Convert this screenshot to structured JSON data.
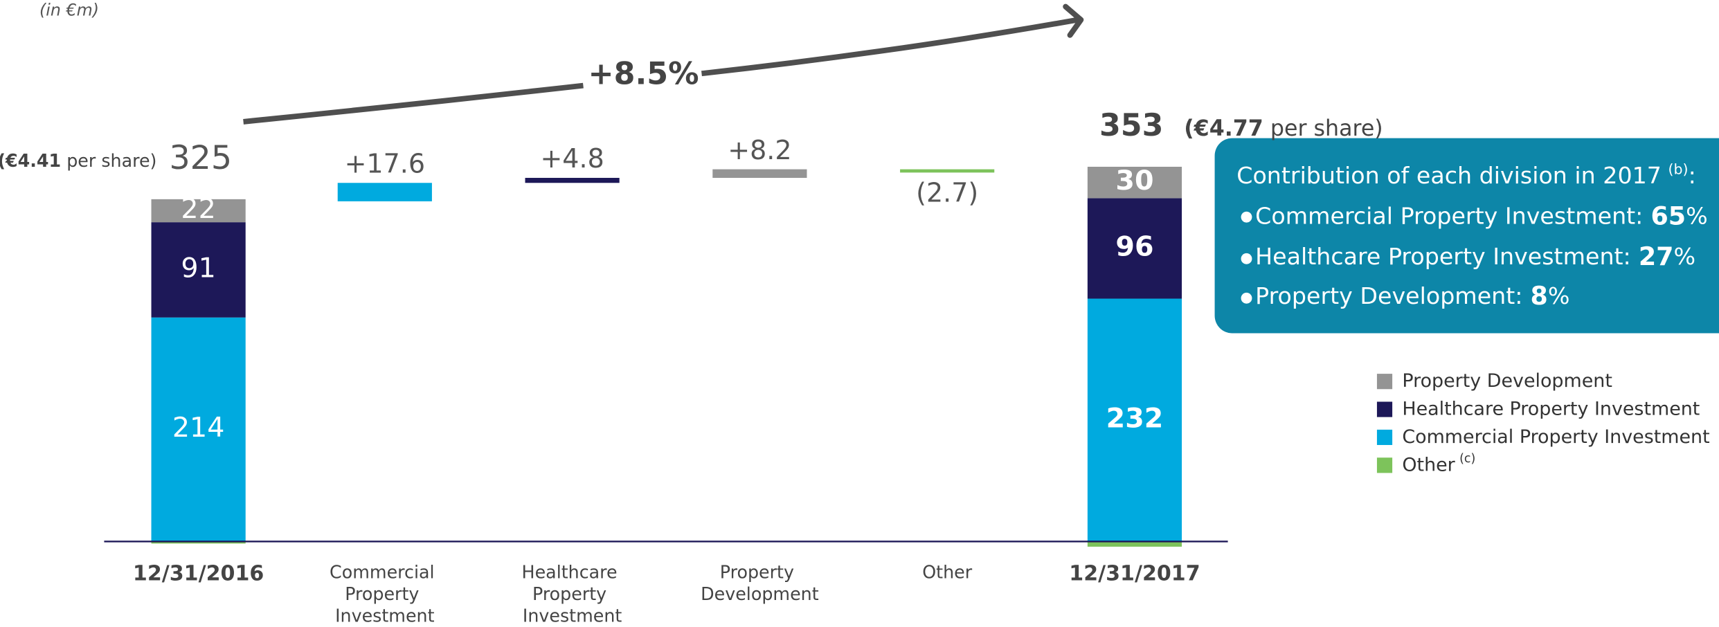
{
  "chart_data": {
    "type": "waterfall",
    "unit_note": "(in €m)",
    "growth_label": "+8.5%",
    "categories": [
      "12/31/2016",
      "Commercial Property Investment",
      "Healthcare Property Investment",
      "Property Development",
      "Other",
      "12/31/2017"
    ],
    "series": [
      {
        "name": "Property Development",
        "color": "#949494",
        "values": [
          22,
          null,
          null,
          8.2,
          null,
          30
        ],
        "value_labels": [
          null,
          null,
          null,
          "+8.2",
          null,
          null
        ]
      },
      {
        "name": "Healthcare Property Investment",
        "color": "#1d1858",
        "values": [
          91,
          null,
          4.8,
          null,
          null,
          96
        ],
        "value_labels": [
          null,
          null,
          "+4.8",
          null,
          null,
          null
        ]
      },
      {
        "name": "Commercial Property Investment",
        "color": "#00aadf",
        "values": [
          214,
          17.6,
          null,
          null,
          null,
          232
        ],
        "value_labels": [
          null,
          "+17.6",
          null,
          null,
          null,
          null
        ]
      },
      {
        "name": "Other",
        "note": "(c)",
        "color": "#7dc35b",
        "values": [
          -2,
          null,
          null,
          null,
          -2.7,
          -5
        ],
        "value_labels": [
          null,
          null,
          null,
          null,
          "(2.7)",
          null
        ]
      }
    ],
    "totals": [
      325,
      null,
      null,
      null,
      null,
      353
    ],
    "per_share": {
      "start": {
        "prefix": "(€",
        "value": 4.41,
        "suffix": "per share)"
      },
      "end": {
        "prefix": "(€",
        "value": 4.77,
        "suffix": "per share)"
      }
    },
    "callout": {
      "title": "Contribution of each division in 2017",
      "note": "(b)",
      "colon": ":",
      "unit": "%",
      "items": [
        {
          "label": "Commercial Property Investment:",
          "value": 65
        },
        {
          "label": "Healthcare Property Investment:",
          "value": 27
        },
        {
          "label": "Property Development:",
          "value": 8
        }
      ]
    }
  }
}
